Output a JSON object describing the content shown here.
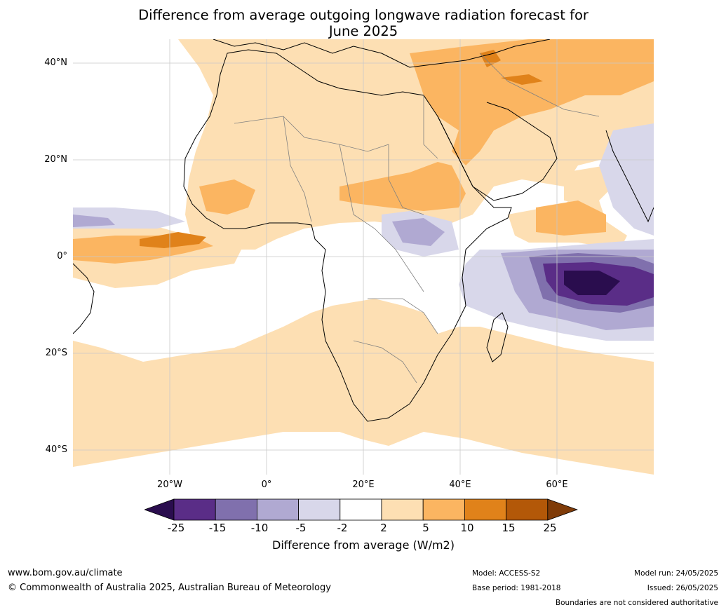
{
  "title": {
    "line1": "Difference from average outgoing longwave radiation forecast for",
    "line2": "June 2025"
  },
  "axes": {
    "latitude_labels": [
      "40°N",
      "20°N",
      "0°",
      "20°S",
      "40°S"
    ],
    "longitude_labels": [
      "20°W",
      "0°",
      "20°E",
      "40°E",
      "60°E"
    ]
  },
  "colorbar": {
    "title": "Difference from average (W/m2)",
    "tick_labels": [
      "-25",
      "-15",
      "-10",
      "-5",
      "-2",
      "2",
      "5",
      "10",
      "15",
      "25"
    ],
    "colors": [
      "#2a0d4e",
      "#5a2d87",
      "#8070ad",
      "#b0a9d2",
      "#d8d7ea",
      "#ffffff",
      "#fddfb3",
      "#fbb561",
      "#e0821a",
      "#b35808",
      "#7f3b08"
    ]
  },
  "map": {
    "region": "Africa",
    "boundary_color": "#000000",
    "country_border_color": "#808080",
    "gridlines": true
  },
  "footer": {
    "website": "www.bom.gov.au/climate",
    "copyright": "© Commonwealth of Australia 2025, Australian Bureau of Meteorology",
    "model": "Model: ACCESS-S2",
    "base_period": "Base period: 1981-2018",
    "model_run": "Model run: 24/05/2025",
    "issued": "Issued: 26/05/2025",
    "disclaimer": "Boundaries are not considered authoritative"
  }
}
